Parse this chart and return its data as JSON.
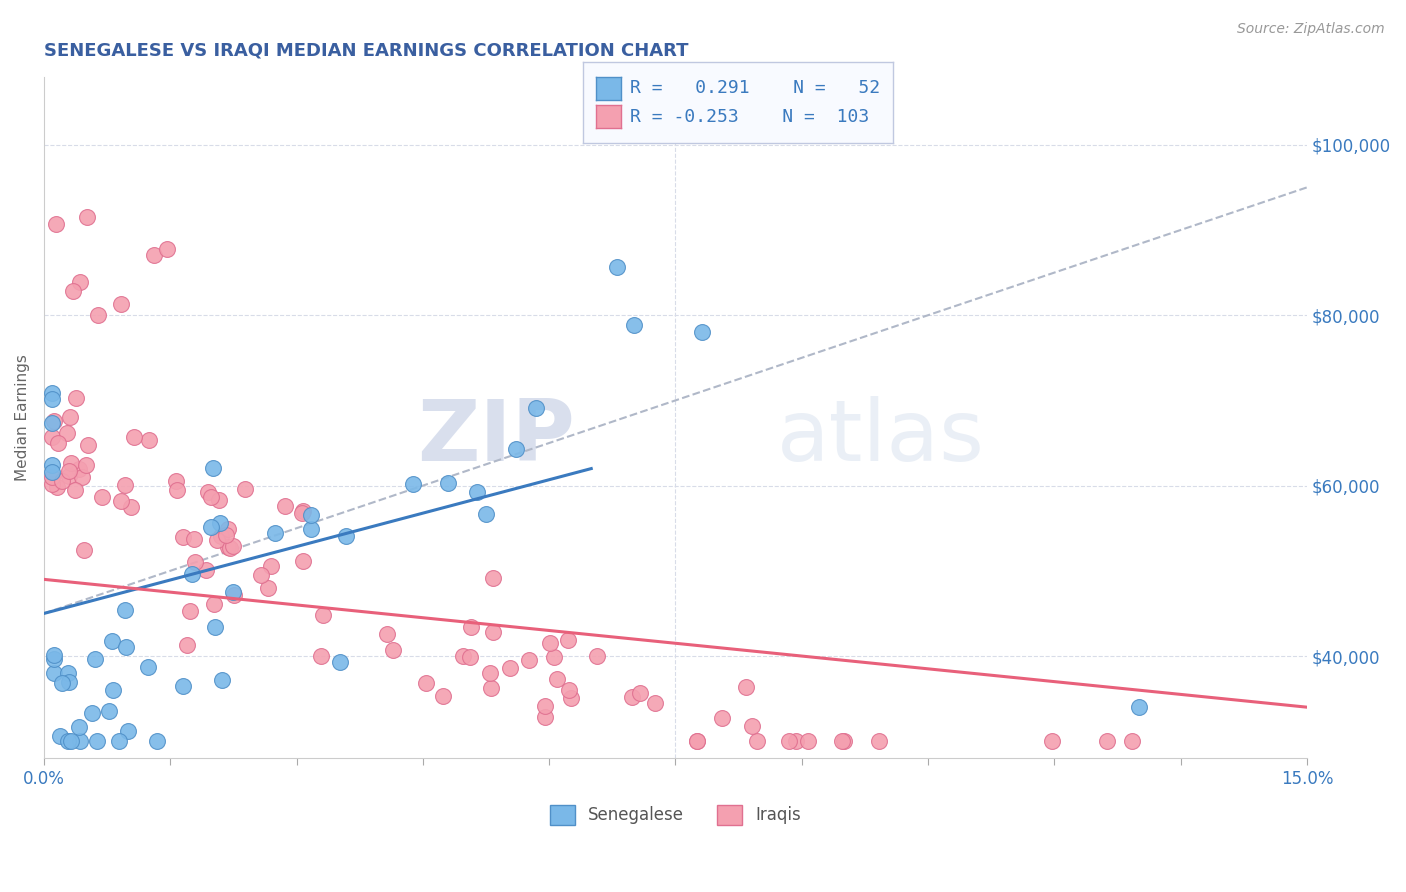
{
  "title": "SENEGALESE VS IRAQI MEDIAN EARNINGS CORRELATION CHART",
  "title_color": "#3a5fa0",
  "title_fontsize": 13,
  "ylabel": "Median Earnings",
  "ylabel_fontsize": 11,
  "source_text": "Source: ZipAtlas.com",
  "watermark_zip": "ZIP",
  "watermark_atlas": "atlas",
  "xlim": [
    0.0,
    0.15
  ],
  "ylim": [
    28000,
    108000
  ],
  "xtick_positions": [
    0.0,
    0.015,
    0.03,
    0.045,
    0.06,
    0.075,
    0.09,
    0.105,
    0.12,
    0.135,
    0.15
  ],
  "xticklabels": [
    "0.0%",
    "",
    "",
    "",
    "",
    "",
    "",
    "",
    "",
    "",
    "15.0%"
  ],
  "ytick_positions": [
    40000,
    60000,
    80000,
    100000
  ],
  "ytick_labels": [
    "$40,000",
    "$60,000",
    "$80,000",
    "$100,000"
  ],
  "senegalese_color": "#7ab8e8",
  "iraqi_color": "#f4a0b0",
  "senegalese_edge": "#5090c8",
  "iraqi_edge": "#e07090",
  "blue_line_color": "#3a7abf",
  "pink_line_color": "#e8607a",
  "gray_line_color": "#b0b8c8",
  "r_senegalese": 0.291,
  "n_senegalese": 52,
  "r_iraqi": -0.253,
  "n_iraqi": 103,
  "background_color": "#ffffff",
  "grid_color": "#d8dce8"
}
